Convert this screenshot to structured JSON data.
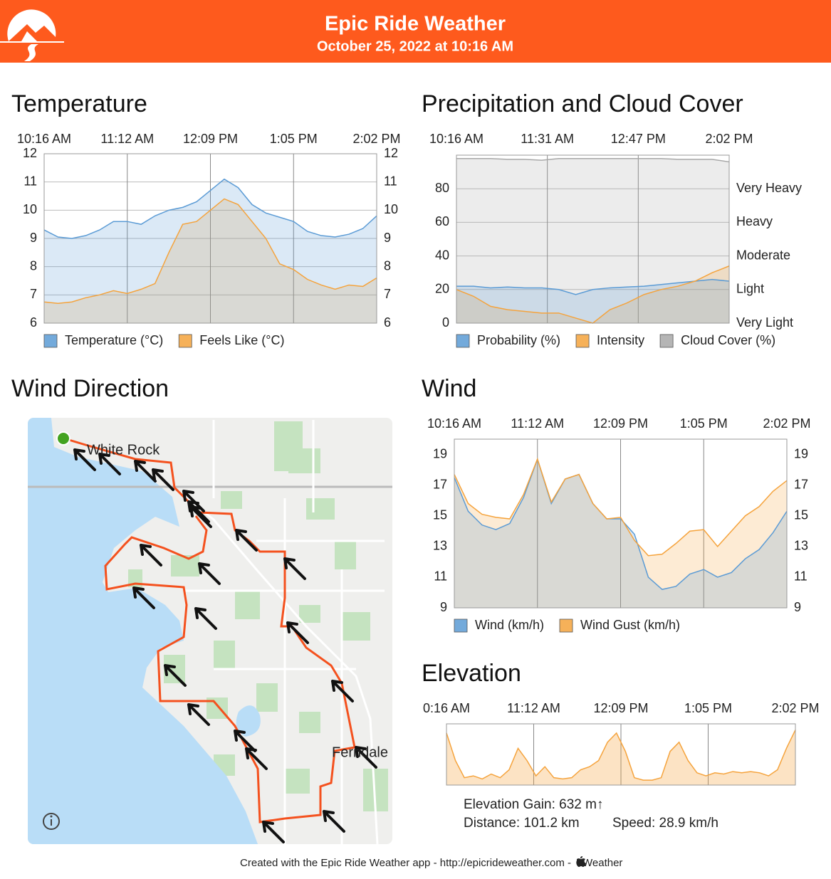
{
  "header": {
    "title": "Epic Ride Weather",
    "subtitle": "October 25, 2022 at 10:16 AM"
  },
  "chart_data": [
    {
      "type": "area",
      "title": "Temperature",
      "x_labels": [
        "10:16 AM",
        "11:12 AM",
        "12:09 PM",
        "1:05 PM",
        "2:02 PM"
      ],
      "ylim": [
        6,
        12
      ],
      "yticks": [
        6,
        7,
        8,
        9,
        10,
        11,
        12
      ],
      "y2lim": [
        6,
        12
      ],
      "y2ticks": [
        6,
        7,
        8,
        9,
        10,
        11,
        12
      ],
      "grid": true,
      "series": [
        {
          "name": "Temperature (°C)",
          "color": "#5b9bd5",
          "values": [
            9.3,
            9.05,
            9.0,
            9.1,
            9.3,
            9.6,
            9.6,
            9.5,
            9.8,
            10.0,
            10.1,
            10.3,
            10.7,
            11.1,
            10.8,
            10.2,
            9.9,
            9.75,
            9.6,
            9.25,
            9.1,
            9.05,
            9.15,
            9.35,
            9.8
          ]
        },
        {
          "name": "Feels Like (°C)",
          "color": "#f5a33c",
          "values": [
            6.75,
            6.7,
            6.75,
            6.9,
            7.0,
            7.15,
            7.05,
            7.2,
            7.4,
            8.5,
            9.5,
            9.6,
            10.0,
            10.4,
            10.2,
            9.6,
            9.0,
            8.1,
            7.9,
            7.55,
            7.35,
            7.2,
            7.35,
            7.3,
            7.6
          ]
        }
      ]
    },
    {
      "type": "area",
      "title": "Precipitation and Cloud Cover",
      "x_labels": [
        "10:16 AM",
        "11:31 AM",
        "12:47 PM",
        "2:02 PM"
      ],
      "ylim": [
        0,
        100
      ],
      "yticks": [
        0,
        20,
        40,
        60,
        80
      ],
      "y2lim": [
        0,
        100
      ],
      "y2ticks": [
        {
          "value": 0,
          "label": "Very Light"
        },
        {
          "value": 20,
          "label": "Light"
        },
        {
          "value": 40,
          "label": "Moderate"
        },
        {
          "value": 60,
          "label": "Heavy"
        },
        {
          "value": 80,
          "label": "Very Heavy"
        }
      ],
      "grid": true,
      "series": [
        {
          "name": "Probability (%)",
          "color": "#5b9bd5",
          "values": [
            22,
            22,
            21,
            21.5,
            21,
            21,
            20,
            17,
            20,
            21,
            21.5,
            22,
            23,
            24,
            25,
            26,
            25
          ]
        },
        {
          "name": "Intensity",
          "color": "#f5a33c",
          "axis": "y2",
          "values": [
            20,
            16,
            10,
            8,
            7,
            6,
            6,
            3,
            0,
            8,
            12,
            17,
            20,
            22,
            25,
            30,
            34
          ]
        },
        {
          "name": "Cloud Cover (%)",
          "color": "#a8a8a8",
          "values": [
            98,
            98,
            98,
            97.5,
            97.5,
            97,
            98,
            98,
            98,
            98,
            98,
            98,
            98,
            97.5,
            97.5,
            97.5,
            96
          ]
        }
      ]
    },
    {
      "type": "area",
      "title": "Wind",
      "x_labels": [
        "10:16 AM",
        "11:12 AM",
        "12:09 PM",
        "1:05 PM",
        "2:02 PM"
      ],
      "ylim": [
        9,
        20
      ],
      "yticks": [
        9,
        11,
        13,
        15,
        17,
        19
      ],
      "y2lim": [
        9,
        20
      ],
      "y2ticks": [
        9,
        11,
        13,
        15,
        17,
        19
      ],
      "grid": "x",
      "series": [
        {
          "name": "Wind (km/h)",
          "color": "#5b9bd5",
          "values": [
            17.5,
            15.3,
            14.4,
            14.1,
            14.5,
            16.2,
            18.7,
            15.8,
            17.4,
            17.7,
            15.8,
            14.8,
            14.8,
            13.8,
            11.0,
            10.2,
            10.4,
            11.2,
            11.5,
            11.0,
            11.3,
            12.2,
            12.8,
            13.9,
            15.3
          ]
        },
        {
          "name": "Wind Gust (km/h)",
          "color": "#f5a33c",
          "values": [
            17.7,
            15.8,
            15.1,
            14.9,
            14.8,
            16.4,
            18.7,
            15.9,
            17.4,
            17.7,
            15.8,
            14.8,
            14.9,
            13.4,
            12.4,
            12.5,
            13.2,
            14.0,
            14.1,
            13.0,
            14.0,
            15.0,
            15.6,
            16.6,
            17.3
          ]
        }
      ]
    },
    {
      "type": "area",
      "title": "Elevation",
      "x_labels": [
        "0:16 AM",
        "11:12 AM",
        "12:09 PM",
        "1:05 PM",
        "2:02 PM"
      ],
      "ylim": [
        0,
        100
      ],
      "grid": "x",
      "series": [
        {
          "color": "#f5a33c",
          "values": [
            85,
            40,
            12,
            15,
            10,
            18,
            12,
            25,
            60,
            40,
            15,
            30,
            12,
            10,
            12,
            25,
            30,
            40,
            70,
            85,
            55,
            12,
            8,
            8,
            12,
            55,
            70,
            40,
            20,
            15,
            20,
            18,
            22,
            20,
            22,
            20,
            15,
            25,
            60,
            90
          ]
        }
      ]
    }
  ],
  "elevation_stats": {
    "gain": "Elevation Gain: 632 m↑",
    "distance": "Distance: 101.2 km",
    "speed": "Speed: 28.9 km/h"
  },
  "map": {
    "title": "Wind Direction",
    "labels": [
      "White Rock",
      "Ferndale"
    ]
  },
  "footer": {
    "text": "Created with the Epic Ride Weather app - http://epicrideweather.com - ",
    "source": "Weather"
  }
}
